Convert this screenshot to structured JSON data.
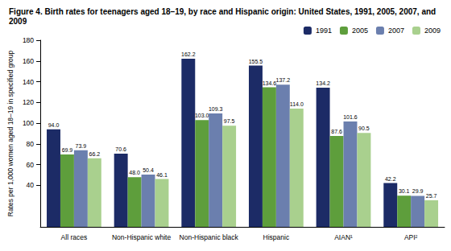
{
  "chart_data": {
    "type": "bar",
    "title": "Figure 4. Birth rates for teenagers aged 18–19, by race and Hispanic origin: United States, 1991, 2005, 2007, and 2009",
    "y_label": "Rates per 1,000 women aged 18–19 in specified group",
    "categories": [
      "All races",
      "Non-Hispanic white",
      "Non-Hispanic black",
      "Hispanic",
      "AIAN¹",
      "API²"
    ],
    "series": [
      {
        "name": "1991",
        "color": "#1c2b66",
        "values": [
          94.0,
          70.6,
          162.2,
          155.5,
          134.2,
          42.2
        ],
        "value_labels": [
          "94.0",
          "70.6",
          "162.2",
          "155.5",
          "134.2",
          "42.2"
        ]
      },
      {
        "name": "2005",
        "color": "#5e9e3c",
        "values": [
          69.9,
          48.0,
          103.0,
          134.6,
          87.6,
          30.1
        ],
        "value_labels": [
          "69.9",
          "48.0",
          "103.0",
          "134.6",
          "87.6",
          "30.1"
        ]
      },
      {
        "name": "2007",
        "color": "#6b7fae",
        "values": [
          73.9,
          50.4,
          109.3,
          137.2,
          101.6,
          29.9
        ],
        "value_labels": [
          "73.9",
          "50.4",
          "109.3",
          "137.2",
          "101.6",
          "29.9"
        ]
      },
      {
        "name": "2009",
        "color": "#a9d08e",
        "values": [
          66.2,
          46.1,
          97.5,
          114.0,
          90.5,
          25.7
        ],
        "value_labels": [
          "66.2",
          "46.1",
          "97.5",
          "114.0",
          "90.5",
          "25.7"
        ]
      }
    ],
    "ylim": [
      0,
      180
    ],
    "yticks": [
      40,
      60,
      80,
      100,
      120,
      140,
      160,
      180
    ],
    "grid": false,
    "legend": "top-right",
    "data_labels": true
  }
}
